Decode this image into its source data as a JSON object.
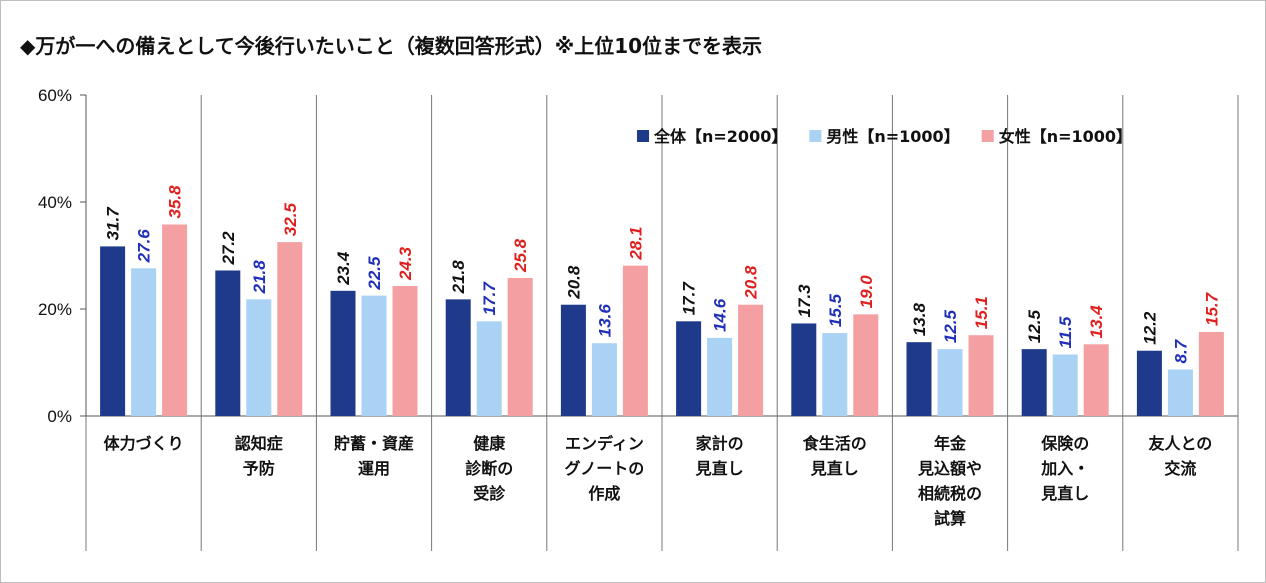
{
  "chart_title": "◆万が一への備えとして今後行いたいこと（複数回答形式）※上位10位までを表示",
  "chart_data": {
    "type": "bar",
    "title": "◆万が一への備えとして今後行いたいこと（複数回答形式）※上位10位までを表示",
    "ylim": [
      0,
      60
    ],
    "yticks": [
      "0%",
      "20%",
      "40%",
      "60%"
    ],
    "ytick_values": [
      0,
      20,
      40,
      60
    ],
    "grid": false,
    "legend_position": "top-right",
    "categories": [
      [
        "体力づくり"
      ],
      [
        "認知症",
        "予防"
      ],
      [
        "貯蓄・資産",
        "運用"
      ],
      [
        "健康",
        "診断の",
        "受診"
      ],
      [
        "エンディン",
        "グノートの",
        "作成"
      ],
      [
        "家計の",
        "見直し"
      ],
      [
        "食生活の",
        "見直し"
      ],
      [
        "年金",
        "見込額や",
        "相続税の",
        "試算"
      ],
      [
        "保険の",
        "加入・",
        "見直し"
      ],
      [
        "友人との",
        "交流"
      ]
    ],
    "series": [
      {
        "name": "全体【n=2000】",
        "color": "#1f3a8a",
        "label_color": "#111111",
        "values": [
          31.7,
          27.2,
          23.4,
          21.8,
          20.8,
          17.7,
          17.3,
          13.8,
          12.5,
          12.2
        ],
        "labels": [
          "31.7",
          "27.2",
          "23.4",
          "21.8",
          "20.8",
          "17.7",
          "17.3",
          "13.8",
          "12.5",
          "12.2"
        ]
      },
      {
        "name": "男性【n=1000】",
        "color": "#a9d2f5",
        "label_color": "#1f2fb8",
        "values": [
          27.6,
          21.8,
          22.5,
          17.7,
          13.6,
          14.6,
          15.5,
          12.5,
          11.5,
          8.7
        ],
        "labels": [
          "27.6",
          "21.8",
          "22.5",
          "17.7",
          "13.6",
          "14.6",
          "15.5",
          "12.5",
          "11.5",
          "8.7"
        ]
      },
      {
        "name": "女性【n=1000】",
        "color": "#f4a0a2",
        "label_color": "#e0201e",
        "values": [
          35.8,
          32.5,
          24.3,
          25.8,
          28.1,
          20.8,
          19.0,
          15.1,
          13.4,
          15.7
        ],
        "labels": [
          "35.8",
          "32.5",
          "24.3",
          "25.8",
          "28.1",
          "20.8",
          "19.0",
          "15.1",
          "13.4",
          "15.7"
        ]
      }
    ]
  }
}
